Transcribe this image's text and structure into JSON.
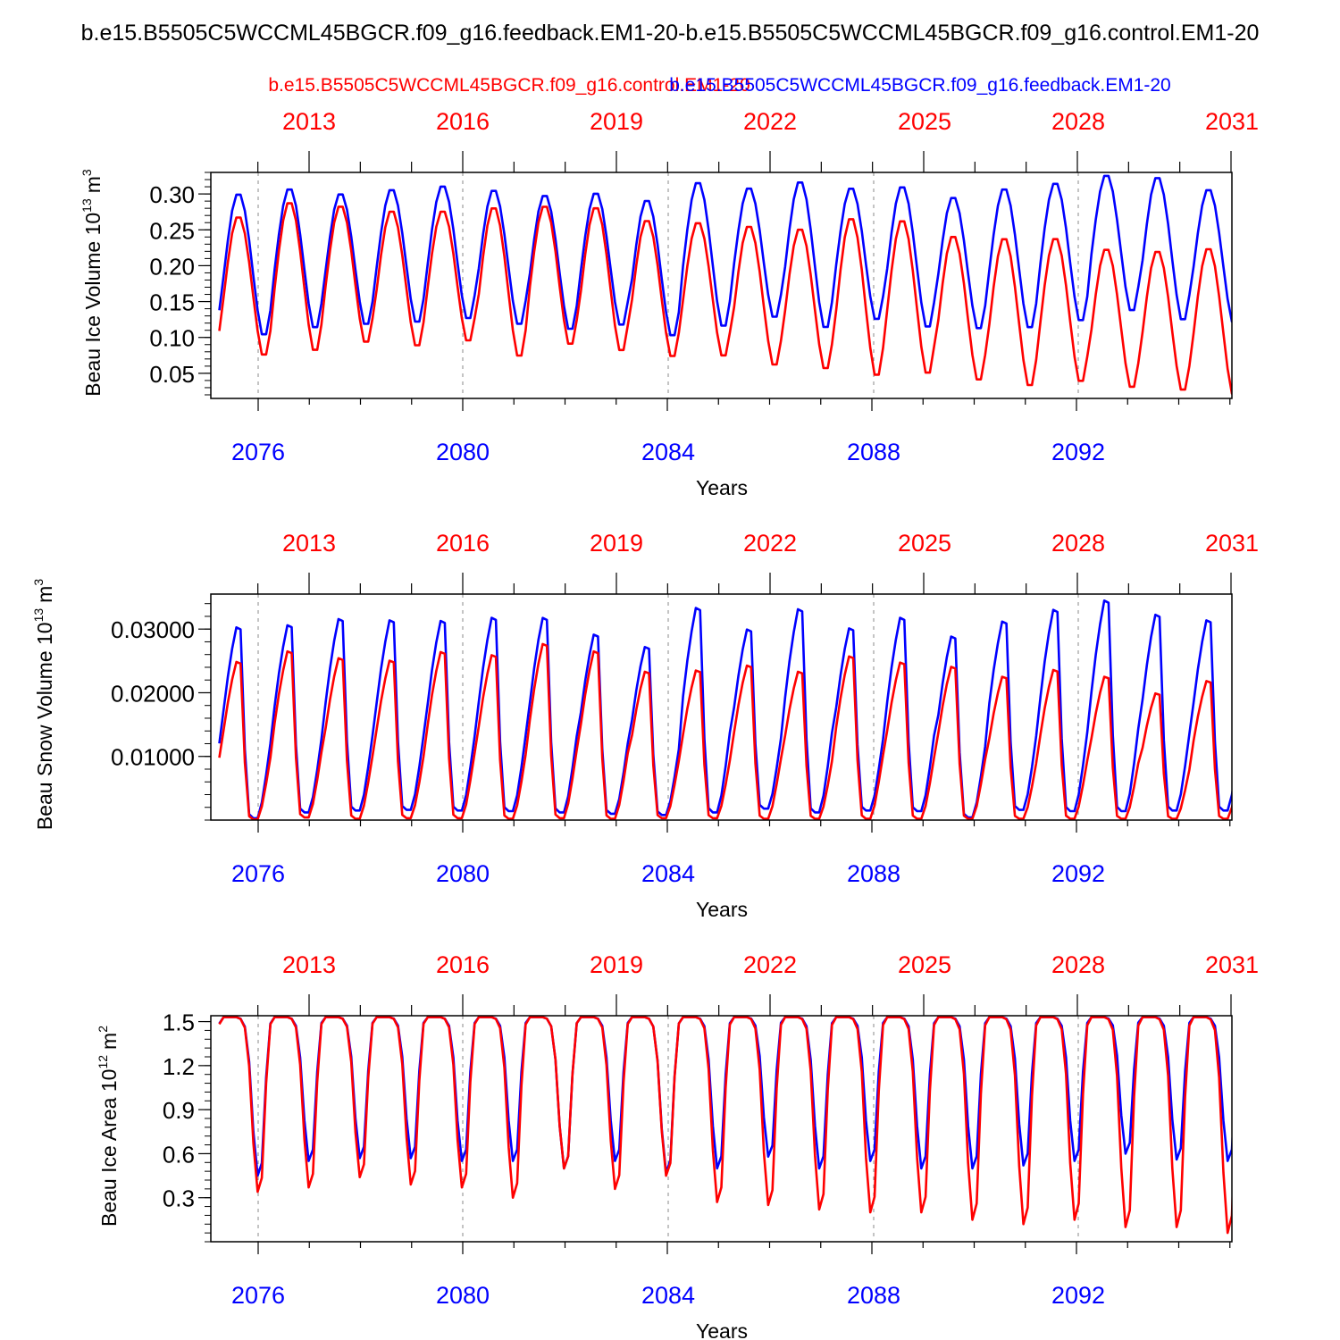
{
  "main_title": "b.e15.B5505C5WCCML45BGCR.f09_g16.feedback.EM1-20-b.e15.B5505C5WCCML45BGCR.f09_g16.control.EM1-20",
  "legend": {
    "red_label": "b.e15.B5505C5WCCML45BGCR.f09_g16.control.EM1-20",
    "blue_label": "b.e15.B5505C5WCCML45BGCR.f09_g16.feedback.EM1-20"
  },
  "colors": {
    "red": "#ff0000",
    "blue": "#0000ff",
    "axis": "#000000"
  },
  "chart_data": [
    {
      "type": "line",
      "id": "ice-volume",
      "ylabel": "Beau Ice Volume 10",
      "ylabel_sup": "13",
      "ylabel_unit": "m",
      "ylabel_unit_sup": "3",
      "xlabel": "Years",
      "ylim": [
        0.015,
        0.33
      ],
      "yticks": [
        "0.05",
        "0.10",
        "0.15",
        "0.20",
        "0.25",
        "0.30"
      ],
      "bottom_ticks": [
        "2076",
        "2080",
        "2084",
        "2088",
        "2092"
      ],
      "top_ticks": [
        "2013",
        "2016",
        "2019",
        "2022",
        "2025",
        "2028",
        "2031"
      ],
      "series": [
        {
          "name": "feedback",
          "color": "blue",
          "peaks": [
            0.302,
            0.309,
            0.302,
            0.308,
            0.313,
            0.307,
            0.3,
            0.303,
            0.293,
            0.318,
            0.31,
            0.319,
            0.31,
            0.312,
            0.297,
            0.309,
            0.317,
            0.328,
            0.325,
            0.308
          ],
          "troughs": [
            0.098,
            0.108,
            0.113,
            0.116,
            0.121,
            0.113,
            0.106,
            0.112,
            0.097,
            0.11,
            0.123,
            0.108,
            0.12,
            0.109,
            0.107,
            0.108,
            0.118,
            0.132,
            0.119,
            0.116
          ]
        },
        {
          "name": "control",
          "color": "red",
          "peaks": [
            0.27,
            0.29,
            0.285,
            0.278,
            0.278,
            0.283,
            0.285,
            0.283,
            0.265,
            0.262,
            0.257,
            0.253,
            0.268,
            0.265,
            0.243,
            0.24,
            0.24,
            0.225,
            0.222,
            0.226
          ],
          "troughs": [
            0.07,
            0.076,
            0.088,
            0.083,
            0.09,
            0.068,
            0.085,
            0.076,
            0.068,
            0.069,
            0.056,
            0.051,
            0.041,
            0.044,
            0.035,
            0.027,
            0.033,
            0.025,
            0.021,
            0.015
          ]
        }
      ]
    },
    {
      "type": "line",
      "id": "snow-volume",
      "ylabel": "Beau Snow Volume 10",
      "ylabel_sup": "13",
      "ylabel_unit": "m",
      "ylabel_unit_sup": "3",
      "xlabel": "Years",
      "ylim": [
        0.0,
        0.0355
      ],
      "yticks": [
        "0.01000",
        "0.02000",
        "0.03000"
      ],
      "bottom_ticks": [
        "2076",
        "2080",
        "2084",
        "2088",
        "2092"
      ],
      "top_ticks": [
        "2013",
        "2016",
        "2019",
        "2022",
        "2025",
        "2028",
        "2031"
      ],
      "series": [
        {
          "name": "feedback",
          "color": "blue",
          "peaks": [
            0.0312,
            0.0315,
            0.0325,
            0.0323,
            0.0322,
            0.0327,
            0.0327,
            0.03,
            0.028,
            0.0343,
            0.0308,
            0.0341,
            0.031,
            0.0327,
            0.0297,
            0.0321,
            0.034,
            0.0355,
            0.0332,
            0.0323
          ],
          "troughs": [
            0.0003,
            0.0012,
            0.0015,
            0.0016,
            0.0015,
            0.0014,
            0.0012,
            0.001,
            0.0008,
            0.0012,
            0.0018,
            0.0012,
            0.0015,
            0.0014,
            0.0004,
            0.0016,
            0.0014,
            0.0014,
            0.0015,
            0.0015
          ]
        },
        {
          "name": "control",
          "color": "red",
          "peaks": [
            0.0256,
            0.0273,
            0.0262,
            0.0258,
            0.0272,
            0.0267,
            0.0285,
            0.0273,
            0.024,
            0.0242,
            0.025,
            0.024,
            0.0265,
            0.0255,
            0.0248,
            0.0232,
            0.0243,
            0.0232,
            0.0205,
            0.0225
          ],
          "troughs": [
            0.0001,
            0.0004,
            0.0002,
            0.0003,
            0.0003,
            0.0002,
            0.0003,
            0.0002,
            0.0003,
            0.0003,
            0.0002,
            0.0002,
            0.0002,
            0.0002,
            0.0002,
            0.0002,
            0.0002,
            0.0002,
            0.0002,
            0.0002
          ]
        }
      ]
    },
    {
      "type": "line",
      "id": "ice-area",
      "ylabel": "Beau Ice Area 10",
      "ylabel_sup": "12",
      "ylabel_unit": "m",
      "ylabel_unit_sup": "2",
      "xlabel": "Years",
      "ylim": [
        0.0,
        1.54
      ],
      "yticks": [
        "0.3",
        "0.6",
        "0.9",
        "1.2",
        "1.5"
      ],
      "bottom_ticks": [
        "2076",
        "2080",
        "2084",
        "2088",
        "2092"
      ],
      "top_ticks": [
        "2013",
        "2016",
        "2019",
        "2022",
        "2025",
        "2028",
        "2031"
      ],
      "series": [
        {
          "name": "feedback",
          "color": "blue",
          "peaks": [
            1.53,
            1.53,
            1.53,
            1.53,
            1.53,
            1.53,
            1.53,
            1.53,
            1.53,
            1.53,
            1.53,
            1.53,
            1.53,
            1.53,
            1.53,
            1.53,
            1.53,
            1.53,
            1.53,
            1.53
          ],
          "troughs": [
            0.45,
            0.55,
            0.57,
            0.57,
            0.55,
            0.55,
            0.5,
            0.55,
            0.47,
            0.5,
            0.58,
            0.5,
            0.55,
            0.5,
            0.5,
            0.52,
            0.55,
            0.6,
            0.56,
            0.55
          ]
        },
        {
          "name": "control",
          "color": "red",
          "peaks": [
            1.53,
            1.53,
            1.53,
            1.53,
            1.53,
            1.53,
            1.53,
            1.53,
            1.53,
            1.53,
            1.53,
            1.53,
            1.53,
            1.53,
            1.53,
            1.53,
            1.53,
            1.53,
            1.53,
            1.53
          ],
          "troughs": [
            0.34,
            0.37,
            0.44,
            0.39,
            0.37,
            0.3,
            0.5,
            0.36,
            0.45,
            0.27,
            0.25,
            0.22,
            0.2,
            0.2,
            0.15,
            0.12,
            0.15,
            0.1,
            0.1,
            0.06
          ]
        }
      ]
    }
  ]
}
